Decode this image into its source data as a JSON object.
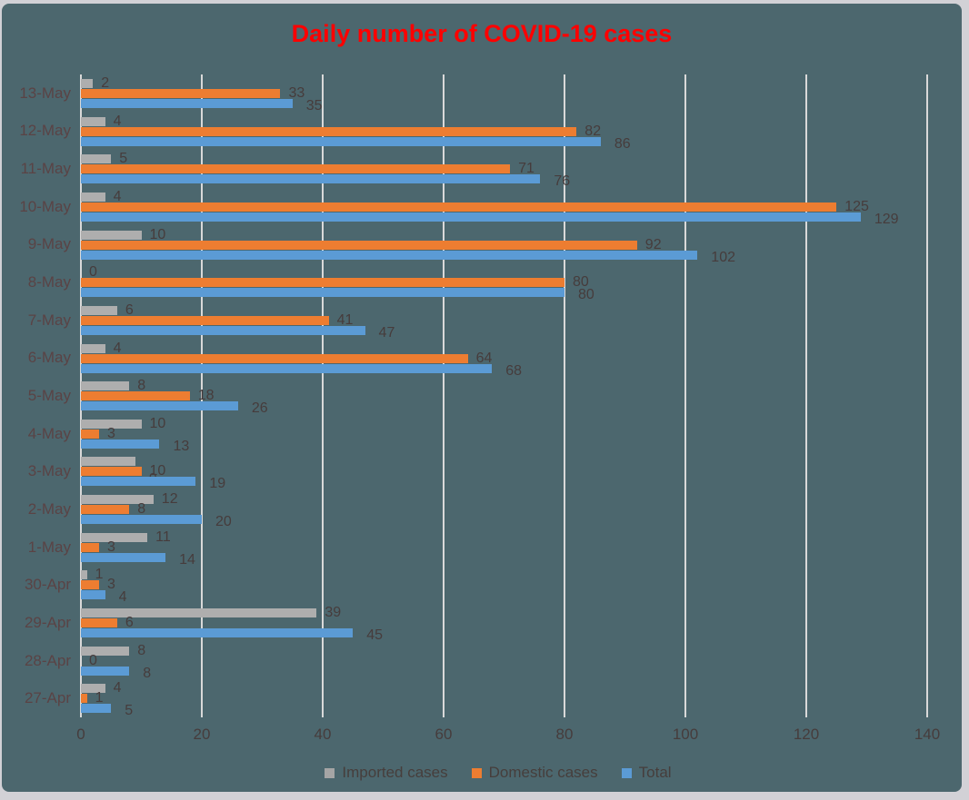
{
  "page": {
    "background": "#d2d1d6"
  },
  "chart": {
    "title": "Daily number of COVID-19 cases",
    "title_color": "#ff0000",
    "background": "#4c676e",
    "gridline_color": "#d9d9d9",
    "category_label_color": "#5a4345",
    "value_label_color": "#463c3c",
    "tick_label_color": "#463c3c",
    "legend_text_color": "#463e3c"
  },
  "chart_data": {
    "type": "bar",
    "orientation": "horizontal",
    "title": "Daily number of COVID-19 cases",
    "categories": [
      "13-May",
      "12-May",
      "11-May",
      "10-May",
      "9-May",
      "8-May",
      "7-May",
      "6-May",
      "5-May",
      "4-May",
      "3-May",
      "2-May",
      "1-May",
      "30-Apr",
      "29-Apr",
      "28-Apr",
      "27-Apr"
    ],
    "series": [
      {
        "name": "Imported cases",
        "color": "#aeaeae",
        "swatch_color": "#a5a5a5",
        "values": [
          2,
          4,
          5,
          4,
          10,
          0,
          6,
          4,
          8,
          10,
          9,
          12,
          11,
          1,
          39,
          8,
          4
        ]
      },
      {
        "name": "Domestic cases",
        "color": "#ed7d31",
        "swatch_color": "#ed7d31",
        "values": [
          33,
          82,
          71,
          125,
          92,
          80,
          41,
          64,
          18,
          3,
          10,
          8,
          3,
          3,
          6,
          0,
          1
        ]
      },
      {
        "name": "Total",
        "color": "#5b9bd5",
        "swatch_color": "#5b9bd5",
        "values": [
          35,
          86,
          76,
          129,
          102,
          80,
          47,
          68,
          26,
          13,
          19,
          20,
          14,
          4,
          45,
          8,
          5
        ]
      }
    ],
    "xlabel": "",
    "ylabel": "",
    "x_ticks": [
      0,
      20,
      40,
      60,
      80,
      100,
      120,
      140
    ],
    "xlim": [
      0,
      140
    ],
    "grid": true,
    "data_labels": true,
    "legend_position": "bottom"
  }
}
